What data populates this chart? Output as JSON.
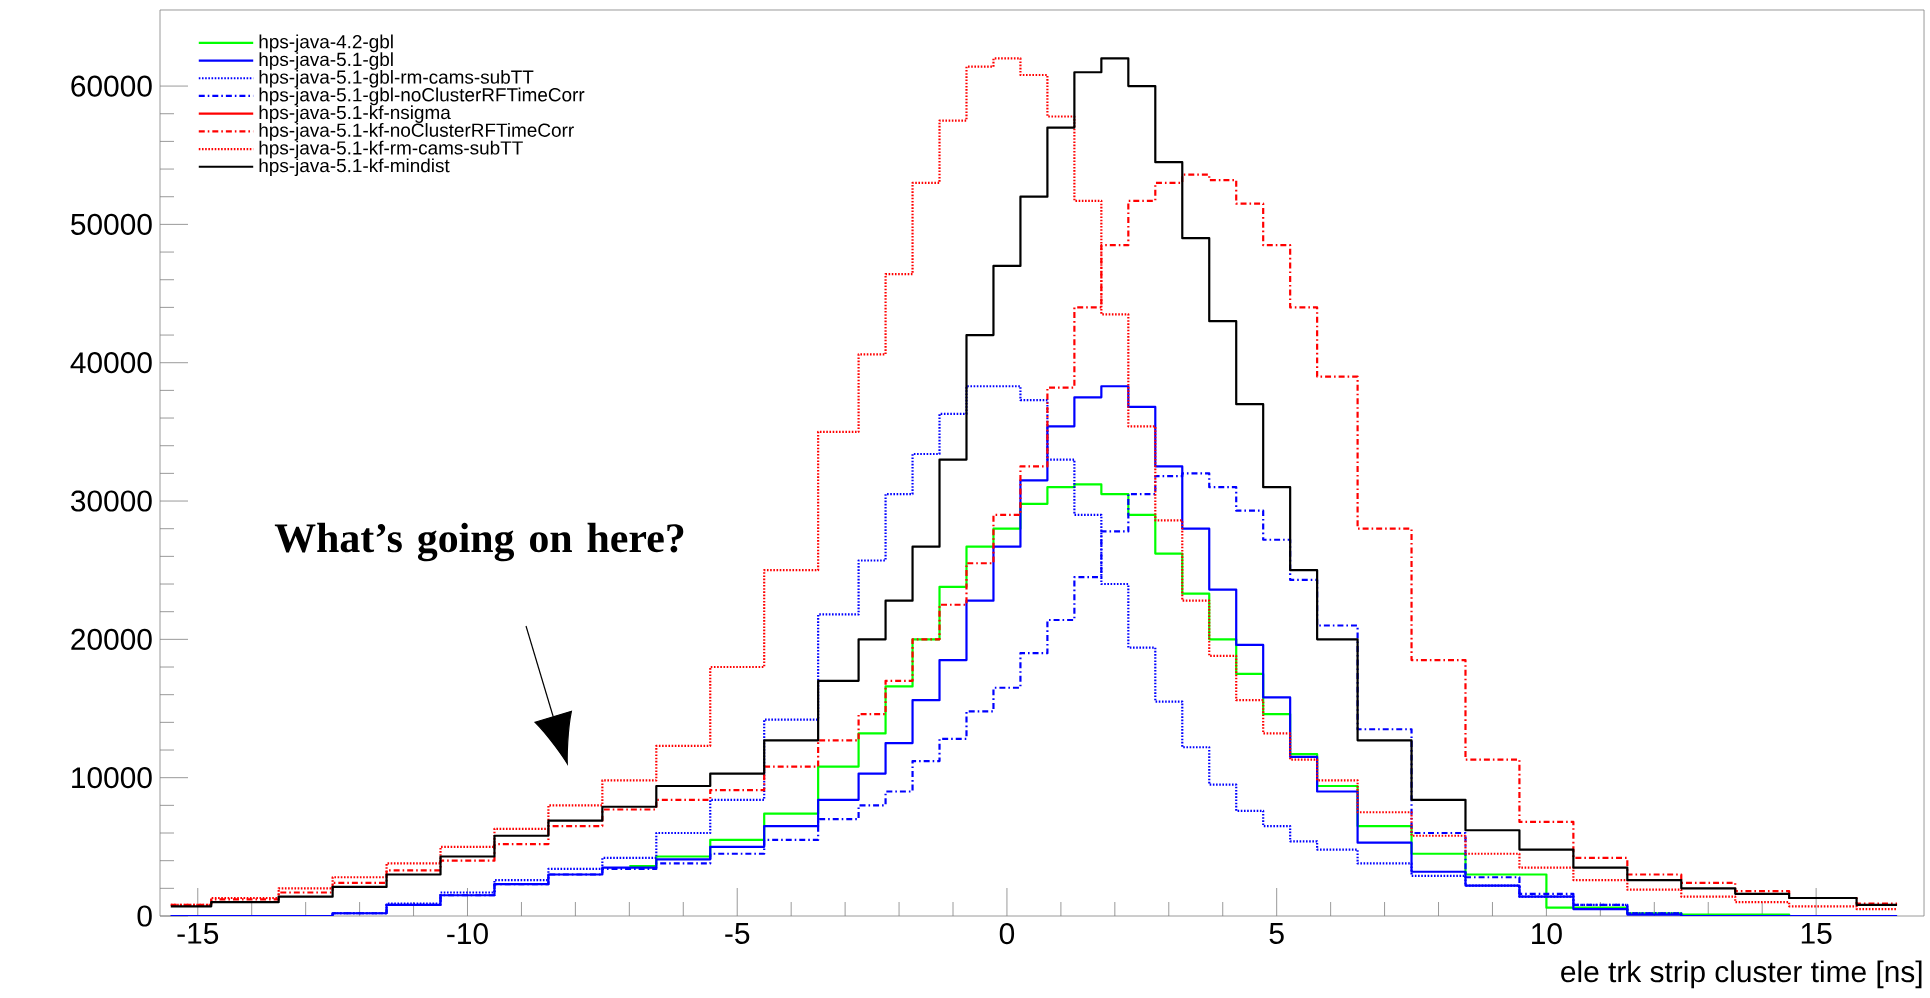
{
  "chart_data": {
    "type": "step",
    "xlabel": "ele trk strip cluster time [ns]",
    "x": [
      -15.5,
      -14,
      -13,
      -12,
      -11,
      -10,
      -9,
      -8,
      -7,
      -6,
      -5,
      -4,
      -3,
      -2.5,
      -2,
      -1.5,
      -1,
      -0.5,
      0,
      0.5,
      1,
      1.5,
      2,
      2.5,
      3,
      3.5,
      4,
      4.5,
      5,
      5.5,
      6,
      7,
      8,
      9,
      10,
      11,
      12,
      13,
      14,
      15,
      16.5
    ],
    "xlim": [
      -15.7,
      17
    ],
    "xticks": [
      -15,
      -10,
      -5,
      0,
      5,
      10,
      15
    ],
    "ylim": [
      0,
      65500
    ],
    "yticks": [
      0,
      10000,
      20000,
      30000,
      40000,
      50000,
      60000
    ],
    "legend": "top left",
    "grid": false,
    "annotations": [
      "What’s going on here?"
    ],
    "series": [
      {
        "name": "hps-java-4.2-gbl",
        "color": "#00ff00",
        "line_style": "solid",
        "values": [
          null,
          null,
          null,
          null,
          null,
          null,
          null,
          null,
          3600,
          4300,
          5500,
          7400,
          10800,
          13200,
          16600,
          20000,
          23800,
          26700,
          28000,
          29800,
          31000,
          31200,
          30500,
          29000,
          26200,
          23300,
          20000,
          17500,
          14600,
          11700,
          9400,
          6500,
          4500,
          3000,
          null,
          600,
          200,
          100,
          100,
          0,
          0
        ]
      },
      {
        "name": "hps-java-5.1-gbl",
        "color": "#0000ff",
        "line_style": "solid",
        "values": [
          0,
          0,
          0,
          200,
          800,
          1500,
          2300,
          3000,
          3500,
          4100,
          5000,
          6500,
          8400,
          10300,
          12500,
          15600,
          18500,
          22800,
          26700,
          31500,
          35400,
          37500,
          38300,
          36800,
          32500,
          28000,
          23600,
          19600,
          15800,
          11500,
          9000,
          5300,
          3200,
          2200,
          1400,
          500,
          100,
          0,
          0,
          0,
          0
        ]
      },
      {
        "name": "hps-java-5.1-gbl-rm-cams-subTT",
        "color": "#0000ff",
        "line_style": "dotted",
        "values": [
          0,
          0,
          0,
          200,
          900,
          1700,
          2600,
          3400,
          4200,
          6000,
          8400,
          14200,
          21800,
          25700,
          30500,
          33400,
          36300,
          38300,
          38300,
          37300,
          33000,
          29000,
          24000,
          19400,
          15500,
          12200,
          9500,
          7600,
          6500,
          5400,
          4800,
          3800,
          2900,
          2200,
          1400,
          800,
          200,
          0,
          0,
          0,
          0
        ]
      },
      {
        "name": "hps-java-5.1-gbl-noClusterRFTimeCorr",
        "color": "#0000ff",
        "line_style": "dashed",
        "values": [
          0,
          0,
          0,
          200,
          800,
          1500,
          2300,
          3000,
          3400,
          3800,
          4500,
          5500,
          7000,
          8000,
          9000,
          11200,
          12800,
          14800,
          16500,
          19000,
          21400,
          24500,
          27800,
          30500,
          31800,
          32000,
          31000,
          29300,
          27200,
          24300,
          21000,
          13500,
          6000,
          2800,
          1600,
          800,
          200,
          0,
          0,
          0,
          0
        ]
      },
      {
        "name": "hps-java-5.1-kf-nsigma",
        "color": "#ff0000",
        "line_style": "solid",
        "values": [
          null,
          null,
          null,
          null,
          null,
          null,
          null,
          null,
          null,
          null,
          null,
          null,
          null,
          null,
          null,
          null,
          null,
          null,
          null,
          null,
          null,
          null,
          null,
          null,
          null,
          null,
          null,
          null,
          null,
          null,
          null,
          null,
          null,
          null,
          null,
          null,
          null,
          null,
          null,
          null,
          null
        ]
      },
      {
        "name": "hps-java-5.1-kf-noClusterRFTimeCorr",
        "color": "#ff0000",
        "line_style": "dashed",
        "values": [
          800,
          1200,
          1700,
          2400,
          3300,
          4000,
          5200,
          6500,
          7700,
          8400,
          9100,
          10800,
          12700,
          14600,
          17000,
          20000,
          22500,
          25500,
          29000,
          32500,
          38200,
          44000,
          48500,
          51700,
          53000,
          53600,
          53200,
          51500,
          48500,
          44000,
          39000,
          28000,
          18500,
          11300,
          6800,
          4200,
          3000,
          2400,
          1800,
          1300,
          900
        ]
      },
      {
        "name": "hps-java-5.1-kf-rm-cams-subTT",
        "color": "#ff0000",
        "line_style": "dotted",
        "values": [
          800,
          1300,
          2000,
          2800,
          3800,
          5000,
          6300,
          8000,
          9800,
          12300,
          18000,
          25000,
          35000,
          40600,
          46400,
          53000,
          57500,
          61400,
          62000,
          60800,
          57800,
          51700,
          43500,
          35400,
          28600,
          22800,
          18800,
          15600,
          13200,
          11300,
          9800,
          7500,
          5800,
          4500,
          3500,
          2600,
          1900,
          1400,
          1000,
          700,
          500
        ]
      },
      {
        "name": "hps-java-5.1-kf-mindist",
        "color": "#000000",
        "line_style": "solid",
        "values": [
          700,
          1000,
          1400,
          2100,
          3000,
          4300,
          5800,
          6900,
          7900,
          9400,
          10300,
          12700,
          17000,
          20000,
          22800,
          26700,
          33000,
          42000,
          47000,
          52000,
          57000,
          61000,
          62000,
          60000,
          54500,
          49000,
          43000,
          37000,
          31000,
          25000,
          20000,
          12700,
          8400,
          6200,
          4800,
          3500,
          2600,
          2000,
          1600,
          1300,
          800
        ]
      }
    ]
  }
}
